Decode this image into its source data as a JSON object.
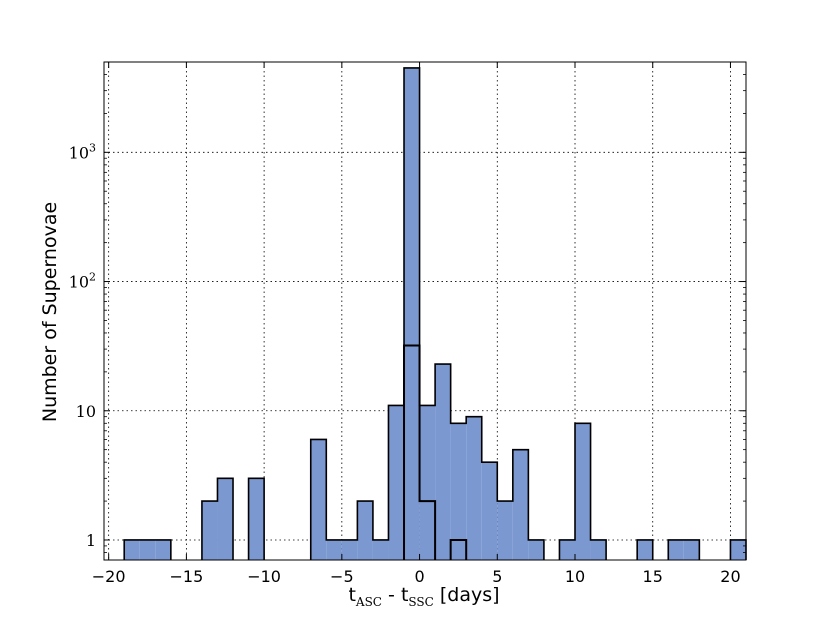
{
  "chart_data": {
    "type": "bar",
    "xlabel": {
      "base1": "t",
      "sub1": "ASC",
      "sep": " - ",
      "base2": "t",
      "sub2": "SSC",
      "suffix": " [days]"
    },
    "ylabel": "Number of Supernovae",
    "yscale": "log",
    "xlim": [
      -20.3,
      21
    ],
    "ylim": [
      0.7,
      5000
    ],
    "grid": true,
    "x_ticks": [
      -20,
      -15,
      -10,
      -5,
      0,
      5,
      10,
      15,
      20
    ],
    "x_tick_labels": [
      "−20",
      "−15",
      "−10",
      "−5",
      "0",
      "5",
      "10",
      "15",
      "20"
    ],
    "y_ticks": [
      {
        "value": 1,
        "label": "1"
      },
      {
        "value": 10,
        "label": "10"
      },
      {
        "value": 100,
        "base": "10",
        "exp": "2"
      },
      {
        "value": 1000,
        "base": "10",
        "exp": "3"
      }
    ],
    "bin_width": 1.0,
    "series": [
      {
        "fill": "#7b98d0",
        "bins": [
          {
            "x": -18.5,
            "value": 1
          },
          {
            "x": -17.5,
            "value": 1
          },
          {
            "x": -16.5,
            "value": 1
          },
          {
            "x": -13.5,
            "value": 2
          },
          {
            "x": -12.5,
            "value": 3
          },
          {
            "x": -10.5,
            "value": 3
          },
          {
            "x": -6.5,
            "value": 6
          },
          {
            "x": -5.5,
            "value": 1
          },
          {
            "x": -4.5,
            "value": 1
          },
          {
            "x": -3.5,
            "value": 2
          },
          {
            "x": -2.5,
            "value": 1
          },
          {
            "x": -1.5,
            "value": 11
          },
          {
            "x": -0.5,
            "value": 4500
          },
          {
            "x": 0.5,
            "value": 11
          },
          {
            "x": 1.5,
            "value": 23
          },
          {
            "x": 2.5,
            "value": 8
          },
          {
            "x": 3.5,
            "value": 9
          },
          {
            "x": 4.5,
            "value": 4
          },
          {
            "x": 5.5,
            "value": 2
          },
          {
            "x": 6.5,
            "value": 5
          },
          {
            "x": 7.5,
            "value": 1
          },
          {
            "x": 9.5,
            "value": 1
          },
          {
            "x": 10.5,
            "value": 8
          },
          {
            "x": 11.5,
            "value": 1
          },
          {
            "x": 14.5,
            "value": 1
          },
          {
            "x": 16.5,
            "value": 1
          },
          {
            "x": 17.5,
            "value": 1
          },
          {
            "x": 20.5,
            "value": 1
          }
        ]
      },
      {
        "style": "step",
        "bins": [
          {
            "x": -0.5,
            "value": 32
          },
          {
            "x": 0.5,
            "value": 2
          },
          {
            "x": 2.5,
            "value": 1
          }
        ]
      }
    ]
  }
}
